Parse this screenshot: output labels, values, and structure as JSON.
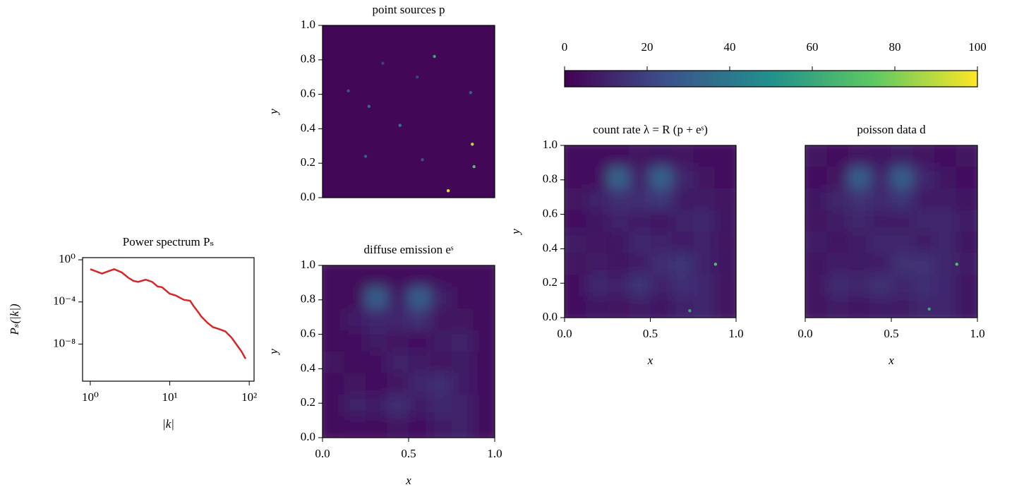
{
  "chart_data": [
    {
      "type": "line",
      "title": "Power spectrum Pₛ",
      "xlabel": "|k|",
      "ylabel": "Pₛ(|k|)",
      "xscale": "log",
      "yscale": "log",
      "xlim": [
        0.8,
        115
      ],
      "ylim": [
        3e-12,
        1.6
      ],
      "xticks": [
        {
          "value": 1,
          "label": "10⁰"
        },
        {
          "value": 10,
          "label": "10¹"
        },
        {
          "value": 100,
          "label": "10²"
        }
      ],
      "yticks": [
        {
          "value": 1,
          "label": "10⁰"
        },
        {
          "value": 0.0001,
          "label": "10⁻⁴"
        },
        {
          "value": 1e-08,
          "label": "10⁻⁸"
        }
      ],
      "color": "#d62728",
      "x": [
        1,
        1.4,
        2,
        2.5,
        3,
        3.5,
        4,
        5,
        6,
        7,
        8,
        10,
        12,
        15,
        18,
        20,
        23,
        25,
        30,
        35,
        40,
        50,
        60,
        70,
        80,
        90
      ],
      "values": [
        0.13,
        0.05,
        0.13,
        0.063,
        0.02,
        0.01,
        0.008,
        0.013,
        0.008,
        0.003,
        0.0025,
        0.0006,
        0.0004,
        0.00016,
        0.00013,
        4e-05,
        1e-05,
        4e-06,
        1e-06,
        4e-07,
        3e-07,
        1.6e-07,
        4e-08,
        8e-09,
        2e-09,
        4e-10
      ]
    },
    {
      "type": "image",
      "title": "point sources p",
      "ylabel": "y",
      "xlim": [
        0,
        1
      ],
      "ylim": [
        0,
        1
      ],
      "yticks": [
        {
          "value": 0,
          "label": "0.0"
        },
        0.2,
        0.4,
        0.6,
        0.8,
        {
          "value": 1,
          "label": "1.0"
        }
      ],
      "z": [
        [
          2
        ]
      ],
      "points": {
        "x": [
          0.65,
          0.87,
          0.73,
          0.88,
          0.45,
          0.27,
          0.25,
          0.58,
          0.86,
          0.15,
          0.55,
          0.35
        ],
        "y": [
          0.82,
          0.31,
          0.04,
          0.18,
          0.42,
          0.53,
          0.24,
          0.22,
          0.61,
          0.62,
          0.7,
          0.78
        ],
        "values": [
          60,
          90,
          95,
          70,
          40,
          35,
          30,
          25,
          30,
          25,
          20,
          20
        ]
      }
    },
    {
      "type": "image",
      "title": "diffuse emission eˢ",
      "xlabel": "x",
      "ylabel": "y",
      "xlim": [
        0,
        1
      ],
      "ylim": [
        0,
        1
      ],
      "xticks": [
        {
          "value": 0,
          "label": "0.0"
        },
        0.5,
        {
          "value": 1,
          "label": "1.0"
        }
      ],
      "yticks": [
        {
          "value": 0,
          "label": "0.0"
        },
        0.2,
        0.4,
        0.6,
        0.8,
        {
          "value": 1,
          "label": "1.0"
        }
      ],
      "z": [
        [
          3,
          3,
          3,
          4,
          5,
          4,
          3,
          3
        ],
        [
          3,
          3,
          30,
          8,
          30,
          10,
          4,
          3
        ],
        [
          4,
          8,
          12,
          12,
          15,
          6,
          6,
          4
        ],
        [
          3,
          5,
          8,
          6,
          5,
          8,
          10,
          5
        ],
        [
          6,
          4,
          5,
          10,
          8,
          6,
          8,
          4
        ],
        [
          4,
          6,
          5,
          6,
          12,
          14,
          8,
          5
        ],
        [
          3,
          10,
          8,
          14,
          8,
          12,
          10,
          4
        ],
        [
          3,
          5,
          4,
          6,
          5,
          8,
          10,
          4
        ]
      ]
    },
    {
      "type": "colorbar",
      "xlim": [
        0,
        100
      ],
      "xticks": [
        0,
        20,
        40,
        60,
        80,
        100
      ]
    },
    {
      "type": "image",
      "title": "count rate λ = R (p + eˢ)",
      "xlabel": "x",
      "ylabel": "y",
      "xlim": [
        0,
        1
      ],
      "ylim": [
        0,
        1
      ],
      "xticks": [
        {
          "value": 0,
          "label": "0.0"
        },
        0.5,
        {
          "value": 1,
          "label": "1.0"
        }
      ],
      "yticks": [
        {
          "value": 0,
          "label": "0.0"
        },
        0.2,
        0.4,
        0.6,
        0.8,
        {
          "value": 1,
          "label": "1.0"
        }
      ],
      "z": [
        [
          5,
          5,
          5,
          6,
          7,
          6,
          5,
          5
        ],
        [
          5,
          5,
          32,
          10,
          32,
          12,
          6,
          5
        ],
        [
          6,
          10,
          14,
          14,
          17,
          8,
          8,
          6
        ],
        [
          5,
          7,
          10,
          8,
          7,
          10,
          12,
          7
        ],
        [
          8,
          6,
          7,
          12,
          10,
          8,
          10,
          6
        ],
        [
          6,
          8,
          7,
          8,
          14,
          16,
          10,
          7
        ],
        [
          5,
          12,
          10,
          16,
          10,
          14,
          12,
          6
        ],
        [
          5,
          7,
          6,
          8,
          7,
          10,
          12,
          6
        ]
      ],
      "points": {
        "x": [
          0.88,
          0.73
        ],
        "y": [
          0.31,
          0.04
        ],
        "values": [
          70,
          60
        ]
      }
    },
    {
      "type": "image",
      "title": "poisson data d",
      "xlabel": "x",
      "xlim": [
        0,
        1
      ],
      "ylim": [
        0,
        1
      ],
      "xticks": [
        {
          "value": 0,
          "label": "0.0"
        },
        0.5,
        {
          "value": 1,
          "label": "1.0"
        }
      ],
      "z": [
        [
          6,
          5,
          6,
          7,
          8,
          6,
          5,
          6
        ],
        [
          5,
          6,
          30,
          11,
          30,
          12,
          7,
          5
        ],
        [
          7,
          11,
          15,
          13,
          16,
          9,
          8,
          7
        ],
        [
          6,
          8,
          11,
          9,
          8,
          11,
          12,
          8
        ],
        [
          9,
          7,
          8,
          12,
          11,
          9,
          11,
          7
        ],
        [
          7,
          9,
          8,
          9,
          15,
          15,
          11,
          8
        ],
        [
          6,
          13,
          11,
          15,
          11,
          14,
          12,
          7
        ],
        [
          6,
          8,
          7,
          9,
          8,
          11,
          12,
          7
        ]
      ],
      "points": {
        "x": [
          0.88,
          0.72
        ],
        "y": [
          0.31,
          0.05
        ],
        "values": [
          70,
          60
        ]
      }
    }
  ]
}
